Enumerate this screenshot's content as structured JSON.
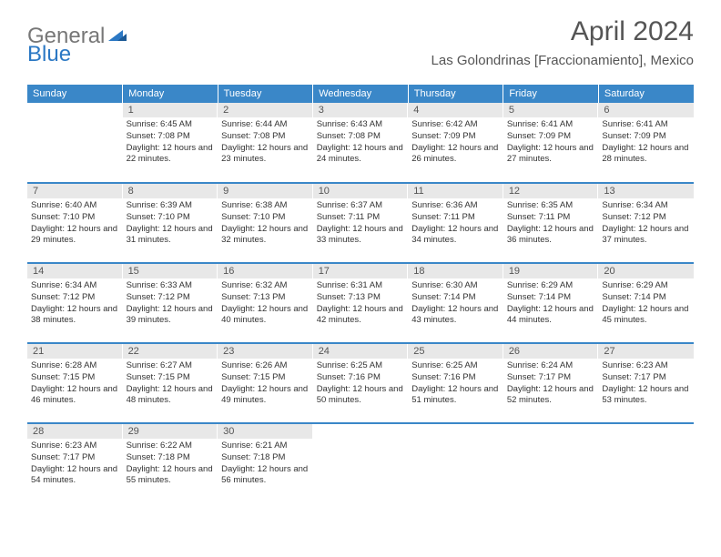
{
  "brand": {
    "part1": "General",
    "part2": "Blue"
  },
  "title": "April 2024",
  "location": "Las Golondrinas [Fraccionamiento], Mexico",
  "colors": {
    "header_bg": "#3a87c8",
    "daynum_bg": "#e8e8e8",
    "row_border": "#3a87c8",
    "text": "#333333",
    "title_text": "#555555"
  },
  "day_names": [
    "Sunday",
    "Monday",
    "Tuesday",
    "Wednesday",
    "Thursday",
    "Friday",
    "Saturday"
  ],
  "weeks": [
    [
      {
        "n": "",
        "sr": "",
        "ss": "",
        "dl": ""
      },
      {
        "n": "1",
        "sr": "6:45 AM",
        "ss": "7:08 PM",
        "dl": "12 hours and 22 minutes."
      },
      {
        "n": "2",
        "sr": "6:44 AM",
        "ss": "7:08 PM",
        "dl": "12 hours and 23 minutes."
      },
      {
        "n": "3",
        "sr": "6:43 AM",
        "ss": "7:08 PM",
        "dl": "12 hours and 24 minutes."
      },
      {
        "n": "4",
        "sr": "6:42 AM",
        "ss": "7:09 PM",
        "dl": "12 hours and 26 minutes."
      },
      {
        "n": "5",
        "sr": "6:41 AM",
        "ss": "7:09 PM",
        "dl": "12 hours and 27 minutes."
      },
      {
        "n": "6",
        "sr": "6:41 AM",
        "ss": "7:09 PM",
        "dl": "12 hours and 28 minutes."
      }
    ],
    [
      {
        "n": "7",
        "sr": "6:40 AM",
        "ss": "7:10 PM",
        "dl": "12 hours and 29 minutes."
      },
      {
        "n": "8",
        "sr": "6:39 AM",
        "ss": "7:10 PM",
        "dl": "12 hours and 31 minutes."
      },
      {
        "n": "9",
        "sr": "6:38 AM",
        "ss": "7:10 PM",
        "dl": "12 hours and 32 minutes."
      },
      {
        "n": "10",
        "sr": "6:37 AM",
        "ss": "7:11 PM",
        "dl": "12 hours and 33 minutes."
      },
      {
        "n": "11",
        "sr": "6:36 AM",
        "ss": "7:11 PM",
        "dl": "12 hours and 34 minutes."
      },
      {
        "n": "12",
        "sr": "6:35 AM",
        "ss": "7:11 PM",
        "dl": "12 hours and 36 minutes."
      },
      {
        "n": "13",
        "sr": "6:34 AM",
        "ss": "7:12 PM",
        "dl": "12 hours and 37 minutes."
      }
    ],
    [
      {
        "n": "14",
        "sr": "6:34 AM",
        "ss": "7:12 PM",
        "dl": "12 hours and 38 minutes."
      },
      {
        "n": "15",
        "sr": "6:33 AM",
        "ss": "7:12 PM",
        "dl": "12 hours and 39 minutes."
      },
      {
        "n": "16",
        "sr": "6:32 AM",
        "ss": "7:13 PM",
        "dl": "12 hours and 40 minutes."
      },
      {
        "n": "17",
        "sr": "6:31 AM",
        "ss": "7:13 PM",
        "dl": "12 hours and 42 minutes."
      },
      {
        "n": "18",
        "sr": "6:30 AM",
        "ss": "7:14 PM",
        "dl": "12 hours and 43 minutes."
      },
      {
        "n": "19",
        "sr": "6:29 AM",
        "ss": "7:14 PM",
        "dl": "12 hours and 44 minutes."
      },
      {
        "n": "20",
        "sr": "6:29 AM",
        "ss": "7:14 PM",
        "dl": "12 hours and 45 minutes."
      }
    ],
    [
      {
        "n": "21",
        "sr": "6:28 AM",
        "ss": "7:15 PM",
        "dl": "12 hours and 46 minutes."
      },
      {
        "n": "22",
        "sr": "6:27 AM",
        "ss": "7:15 PM",
        "dl": "12 hours and 48 minutes."
      },
      {
        "n": "23",
        "sr": "6:26 AM",
        "ss": "7:15 PM",
        "dl": "12 hours and 49 minutes."
      },
      {
        "n": "24",
        "sr": "6:25 AM",
        "ss": "7:16 PM",
        "dl": "12 hours and 50 minutes."
      },
      {
        "n": "25",
        "sr": "6:25 AM",
        "ss": "7:16 PM",
        "dl": "12 hours and 51 minutes."
      },
      {
        "n": "26",
        "sr": "6:24 AM",
        "ss": "7:17 PM",
        "dl": "12 hours and 52 minutes."
      },
      {
        "n": "27",
        "sr": "6:23 AM",
        "ss": "7:17 PM",
        "dl": "12 hours and 53 minutes."
      }
    ],
    [
      {
        "n": "28",
        "sr": "6:23 AM",
        "ss": "7:17 PM",
        "dl": "12 hours and 54 minutes."
      },
      {
        "n": "29",
        "sr": "6:22 AM",
        "ss": "7:18 PM",
        "dl": "12 hours and 55 minutes."
      },
      {
        "n": "30",
        "sr": "6:21 AM",
        "ss": "7:18 PM",
        "dl": "12 hours and 56 minutes."
      },
      {
        "n": "",
        "sr": "",
        "ss": "",
        "dl": ""
      },
      {
        "n": "",
        "sr": "",
        "ss": "",
        "dl": ""
      },
      {
        "n": "",
        "sr": "",
        "ss": "",
        "dl": ""
      },
      {
        "n": "",
        "sr": "",
        "ss": "",
        "dl": ""
      }
    ]
  ],
  "labels": {
    "sunrise": "Sunrise:",
    "sunset": "Sunset:",
    "daylight": "Daylight:"
  }
}
